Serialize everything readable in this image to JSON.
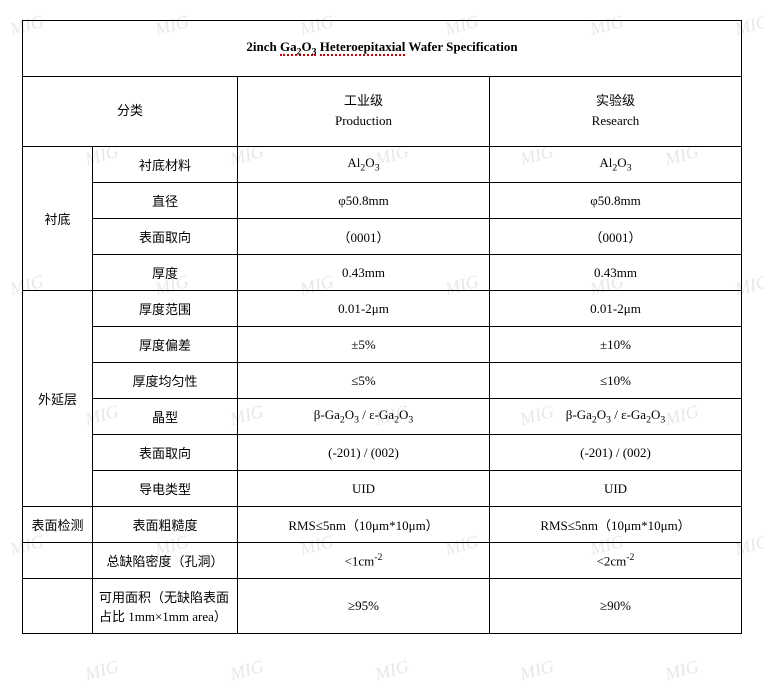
{
  "title_html": "2inch <span class='squiggle'>Ga<sub>2</sub>O<sub>3</sub></span> <span class='squiggle'>Heteroepitaxial</span> Wafer Specification",
  "header": {
    "category": "分类",
    "col1_cn": "工业级",
    "col1_en": "Production",
    "col2_cn": "实验级",
    "col2_en": "Research"
  },
  "groups": [
    {
      "name": "衬底",
      "rows": [
        {
          "label": "衬底材料",
          "v1_html": "Al<sub>2</sub>O<sub>3</sub>",
          "v2_html": "Al<sub>2</sub>O<sub>3</sub>"
        },
        {
          "label": "直径",
          "v1": "φ50.8mm",
          "v2": "φ50.8mm"
        },
        {
          "label": "表面取向",
          "v1": "（0001）",
          "v2": "（0001）"
        },
        {
          "label": "厚度",
          "v1": "0.43mm",
          "v2": "0.43mm"
        }
      ]
    },
    {
      "name": "外延层",
      "rows": [
        {
          "label": "厚度范围",
          "v1": "0.01-2μm",
          "v2": "0.01-2μm"
        },
        {
          "label": "厚度偏差",
          "v1": "±5%",
          "v2": "±10%"
        },
        {
          "label": "厚度均匀性",
          "v1": "≤5%",
          "v2": "≤10%"
        },
        {
          "label": "晶型",
          "v1_html": "β-Ga<sub>2</sub>O<sub>3</sub> / ε-Ga<sub>2</sub>O<sub>3</sub>",
          "v2_html": "β-Ga<sub>2</sub>O<sub>3</sub> / ε-Ga<sub>2</sub>O<sub>3</sub>"
        },
        {
          "label": "表面取向",
          "v1": "(-201) / (002)",
          "v2": "(-201) / (002)"
        },
        {
          "label": "导电类型",
          "v1": "UID",
          "v2": "UID"
        }
      ]
    },
    {
      "name": "表面检测",
      "rows": [
        {
          "label": "表面粗糙度",
          "v1": "RMS≤5nm（10μm*10μm）",
          "v2": "RMS≤5nm（10μm*10μm）"
        }
      ]
    }
  ],
  "loose_rows": [
    {
      "label": "总缺陷密度（孔洞）",
      "v1_html": "&lt;1cm<sup>-2</sup>",
      "v2_html": "&lt;2cm<sup>-2</sup>"
    },
    {
      "label": "可用面积（无缺陷表面占比 1mm×1mm area）",
      "v1": "≥95%",
      "v2": "≥90%",
      "tall": true
    }
  ],
  "watermark_text": "MIG",
  "colors": {
    "border": "#000000",
    "background": "#ffffff",
    "squiggle": "#cc0000",
    "watermark": "rgba(160,160,160,0.25)"
  }
}
